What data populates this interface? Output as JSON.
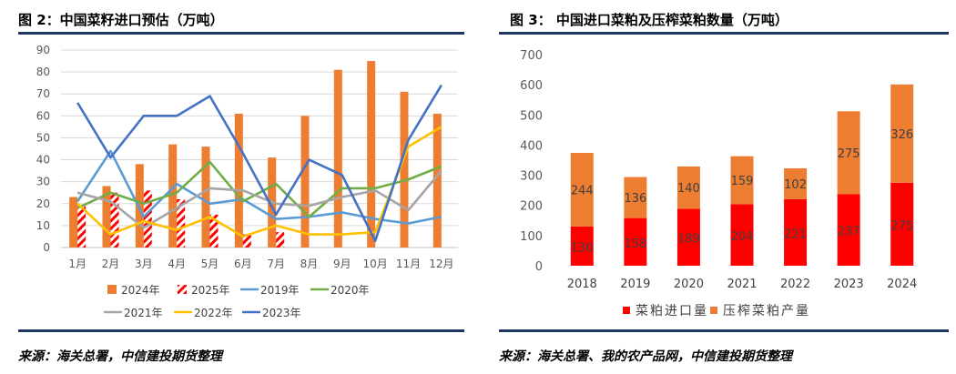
{
  "left": {
    "title": "图 2：中国菜籽进口预估（万吨）",
    "source": "来源：海关总署，中信建投期货整理"
  },
  "right": {
    "title": "图 3： 中国进口菜粕及压榨菜粕数量（万吨）",
    "source": "来源：海关总署、我的农产品网，中信建投期货整理"
  },
  "colors": {
    "orange": "#ED7D31",
    "red": "#FF0000",
    "blue": "#5B9BD5",
    "green": "#70AD47",
    "gray": "#A5A5A5",
    "yellow": "#FFC000",
    "darkblue": "#4472C4",
    "rule": "#1F3864"
  },
  "chart_data": [
    {
      "type": "bar+line",
      "categories": [
        "1月",
        "2月",
        "3月",
        "4月",
        "5月",
        "6月",
        "7月",
        "8月",
        "9月",
        "10月",
        "11月",
        "12月"
      ],
      "ylim": [
        0,
        90
      ],
      "yticks": [
        0,
        10,
        20,
        30,
        40,
        50,
        60,
        70,
        80,
        90
      ],
      "grid": true,
      "legend_position": "bottom",
      "bar_series": [
        {
          "name": "2024年",
          "style": "solid",
          "color": "#ED7D31",
          "values": [
            23,
            28,
            38,
            47,
            46,
            61,
            41,
            60,
            81,
            85,
            71,
            61
          ]
        },
        {
          "name": "2025年",
          "style": "hatched",
          "color": "#FF0000",
          "values": [
            19,
            25,
            26,
            22,
            15,
            6,
            7,
            null,
            null,
            null,
            null,
            null
          ]
        }
      ],
      "line_series": [
        {
          "name": "2019年",
          "color": "#5B9BD5",
          "values": [
            21,
            44,
            14,
            29,
            20,
            22,
            13,
            14,
            16,
            13,
            11,
            14
          ]
        },
        {
          "name": "2020年",
          "color": "#70AD47",
          "values": [
            18,
            25,
            20,
            25,
            39,
            21,
            29,
            14,
            27,
            27,
            31,
            37
          ]
        },
        {
          "name": "2021年",
          "color": "#A5A5A5",
          "values": [
            25,
            21,
            9,
            18,
            27,
            26,
            20,
            19,
            23,
            26,
            17,
            35
          ]
        },
        {
          "name": "2022年",
          "color": "#FFC000",
          "values": [
            20,
            6,
            12,
            8,
            14,
            5,
            10,
            6,
            6,
            7,
            46,
            55
          ]
        },
        {
          "name": "2023年",
          "color": "#4472C4",
          "values": [
            66,
            41,
            60,
            60,
            69,
            43,
            15,
            40,
            33,
            3,
            49,
            74
          ]
        }
      ],
      "legend": [
        "2024年",
        "2025年",
        "2019年",
        "2020年",
        "2021年",
        "2022年",
        "2023年"
      ]
    },
    {
      "type": "stacked-bar",
      "categories": [
        "2018",
        "2019",
        "2020",
        "2021",
        "2022",
        "2023",
        "2024"
      ],
      "ylim": [
        0,
        700
      ],
      "yticks": [
        0,
        100,
        200,
        300,
        400,
        500,
        600,
        700
      ],
      "grid": false,
      "legend_position": "bottom",
      "series": [
        {
          "name": "菜粕进口量",
          "color": "#FF0000",
          "values": [
            130,
            158,
            189,
            204,
            221,
            237,
            275
          ]
        },
        {
          "name": "压榨菜粕产量",
          "color": "#ED7D31",
          "values": [
            244,
            136,
            140,
            159,
            102,
            275,
            326
          ]
        }
      ]
    }
  ]
}
